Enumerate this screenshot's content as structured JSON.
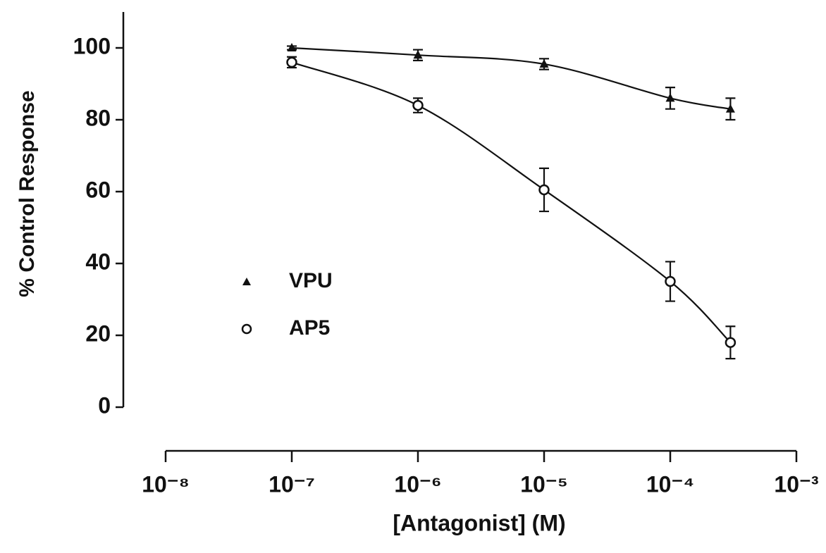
{
  "chart_data": {
    "type": "scatter",
    "x_label": "[Antagonist] (M)",
    "y_label": "% Control Response",
    "x": [
      1e-07,
      1e-06,
      1e-05,
      0.0001,
      0.0003
    ],
    "series": [
      {
        "name": "VPU",
        "marker": "triangle",
        "color": "#111111",
        "values": [
          100,
          98,
          95.5,
          86,
          83
        ],
        "errors": [
          0.5,
          1.5,
          1.5,
          3,
          3
        ]
      },
      {
        "name": "AP5",
        "marker": "circle",
        "color": "#111111",
        "values": [
          96,
          84,
          60.5,
          35,
          18
        ],
        "errors": [
          1.5,
          2,
          6,
          5.5,
          4.5
        ]
      }
    ],
    "xscale": "log",
    "xlim": [
      1e-08,
      0.001
    ],
    "xticks": [
      {
        "value": 1e-08,
        "label": "10⁻⁸"
      },
      {
        "value": 1e-07,
        "label": "10⁻⁷"
      },
      {
        "value": 1e-06,
        "label": "10⁻⁶"
      },
      {
        "value": 1e-05,
        "label": "10⁻⁵"
      },
      {
        "value": 0.0001,
        "label": "10⁻⁴"
      },
      {
        "value": 0.001,
        "label": "10⁻³"
      }
    ],
    "ylim": [
      0,
      110
    ],
    "yticks": [
      0,
      20,
      40,
      60,
      80,
      100
    ],
    "grid": false
  }
}
